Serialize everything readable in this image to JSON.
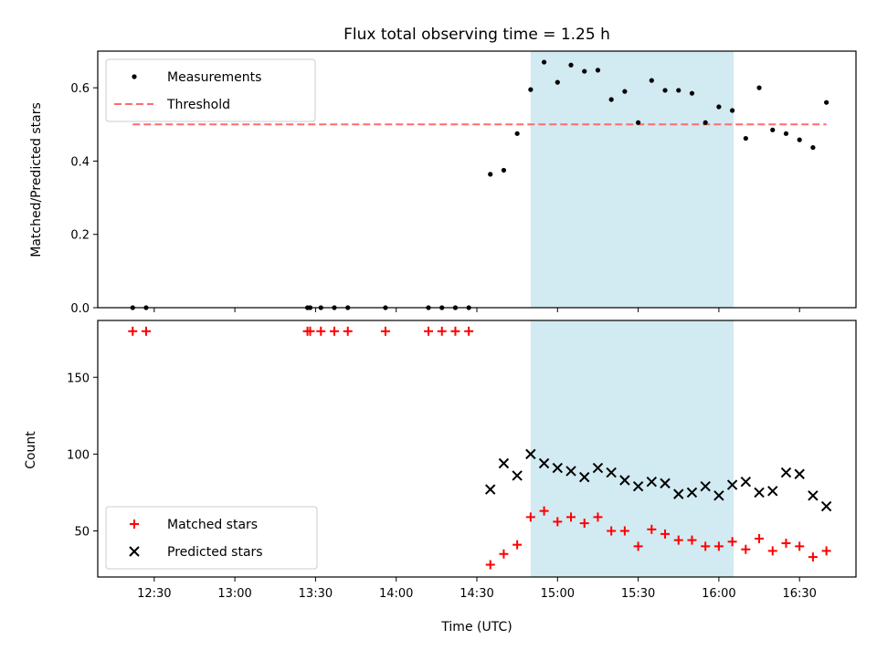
{
  "chart_data": {
    "type": "scatter",
    "title": "Flux total observing time = 1.25 h",
    "xlabel": "Time (UTC)",
    "x_ticks": [
      "12:30",
      "13:00",
      "13:30",
      "14:00",
      "14:30",
      "15:00",
      "15:30",
      "16:00",
      "16:30"
    ],
    "x_tick_minutes": [
      750,
      780,
      810,
      840,
      870,
      900,
      930,
      960,
      990
    ],
    "xlim_minutes": [
      729,
      1011
    ],
    "highlight_span_minutes": [
      890,
      965.5
    ],
    "highlight_color": "#add8e6",
    "top_panel": {
      "ylabel": "Matched/Predicted stars",
      "ylim": [
        0,
        0.7
      ],
      "yticks": [
        "0.0",
        "0.2",
        "0.4",
        "0.6"
      ],
      "ytick_values": [
        0,
        0.2,
        0.4,
        0.6
      ],
      "threshold": 0.5,
      "threshold_color": "#ff6b6b",
      "legend": [
        "Measurements",
        "Threshold"
      ],
      "series": [
        {
          "name": "Measurements",
          "color": "#000000",
          "points": [
            [
              742,
              0
            ],
            [
              747,
              0
            ],
            [
              807,
              0
            ],
            [
              808,
              0
            ],
            [
              812,
              0
            ],
            [
              817,
              0
            ],
            [
              822,
              0
            ],
            [
              836,
              0
            ],
            [
              852,
              0
            ],
            [
              857,
              0
            ],
            [
              862,
              0
            ],
            [
              867,
              0
            ],
            [
              875,
              0.364
            ],
            [
              880,
              0.375
            ],
            [
              885,
              0.475
            ],
            [
              890,
              0.595
            ],
            [
              895,
              0.67
            ],
            [
              900,
              0.615
            ],
            [
              905,
              0.662
            ],
            [
              910,
              0.645
            ],
            [
              915,
              0.648
            ],
            [
              920,
              0.568
            ],
            [
              925,
              0.59
            ],
            [
              930,
              0.505
            ],
            [
              935,
              0.62
            ],
            [
              940,
              0.593
            ],
            [
              945,
              0.593
            ],
            [
              950,
              0.585
            ],
            [
              955,
              0.505
            ],
            [
              960,
              0.548
            ],
            [
              965,
              0.538
            ],
            [
              970,
              0.462
            ],
            [
              975,
              0.6
            ],
            [
              980,
              0.485
            ],
            [
              985,
              0.475
            ],
            [
              990,
              0.458
            ],
            [
              995,
              0.437
            ],
            [
              1000,
              0.56
            ]
          ]
        }
      ]
    },
    "bottom_panel": {
      "ylabel": "Count",
      "ylim": [
        20,
        187
      ],
      "yticks": [
        "50",
        "100",
        "150"
      ],
      "ytick_values": [
        50,
        100,
        150
      ],
      "legend": [
        "Matched stars",
        "Predicted stars"
      ],
      "series": [
        {
          "name": "Matched stars",
          "marker": "plus",
          "color": "#ff0000",
          "points": [
            [
              742,
              180
            ],
            [
              747,
              180
            ],
            [
              807,
              180
            ],
            [
              808,
              180
            ],
            [
              812,
              180
            ],
            [
              817,
              180
            ],
            [
              822,
              180
            ],
            [
              836,
              180
            ],
            [
              852,
              180
            ],
            [
              857,
              180
            ],
            [
              862,
              180
            ],
            [
              867,
              180
            ],
            [
              875,
              28
            ],
            [
              880,
              35
            ],
            [
              885,
              41
            ],
            [
              890,
              59
            ],
            [
              895,
              63
            ],
            [
              900,
              56
            ],
            [
              905,
              59
            ],
            [
              910,
              55
            ],
            [
              915,
              59
            ],
            [
              920,
              50
            ],
            [
              925,
              50
            ],
            [
              930,
              40
            ],
            [
              935,
              51
            ],
            [
              940,
              48
            ],
            [
              945,
              44
            ],
            [
              950,
              44
            ],
            [
              955,
              40
            ],
            [
              960,
              40
            ],
            [
              965,
              43
            ],
            [
              970,
              38
            ],
            [
              975,
              45
            ],
            [
              980,
              37
            ],
            [
              985,
              42
            ],
            [
              990,
              40
            ],
            [
              995,
              33
            ],
            [
              1000,
              37
            ]
          ]
        },
        {
          "name": "Predicted stars",
          "marker": "x",
          "color": "#000000",
          "points": [
            [
              875,
              77
            ],
            [
              880,
              94
            ],
            [
              885,
              86
            ],
            [
              890,
              100
            ],
            [
              895,
              94
            ],
            [
              900,
              91
            ],
            [
              905,
              89
            ],
            [
              910,
              85
            ],
            [
              915,
              91
            ],
            [
              920,
              88
            ],
            [
              925,
              83
            ],
            [
              930,
              79
            ],
            [
              935,
              82
            ],
            [
              940,
              81
            ],
            [
              945,
              74
            ],
            [
              950,
              75
            ],
            [
              955,
              79
            ],
            [
              960,
              73
            ],
            [
              965,
              80
            ],
            [
              970,
              82
            ],
            [
              975,
              75
            ],
            [
              980,
              76
            ],
            [
              985,
              88
            ],
            [
              990,
              87
            ],
            [
              995,
              73
            ],
            [
              1000,
              66
            ]
          ]
        }
      ]
    }
  }
}
